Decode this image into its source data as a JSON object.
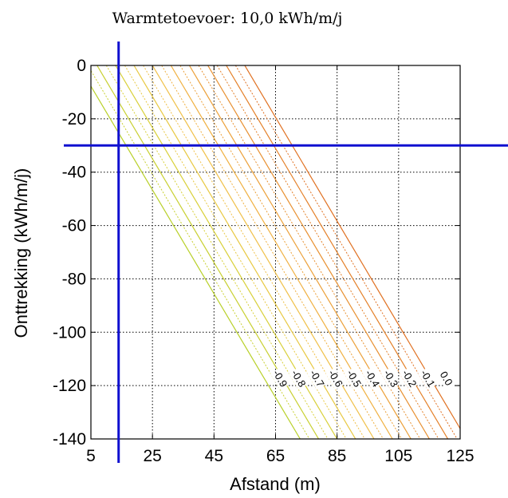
{
  "chart_data": {
    "type": "contour",
    "title": "Warmtetoevoer: 10,0 kWh/m/j",
    "xlabel": "Afstand (m)",
    "ylabel": "Onttrekking (kWh/m/j)",
    "xlim": [
      5,
      125
    ],
    "ylim": [
      -140,
      0
    ],
    "x_ticks": [
      "5",
      "25",
      "45",
      "65",
      "85",
      "105",
      "125"
    ],
    "y_ticks": [
      "0",
      "-20",
      "-40",
      "-60",
      "-80",
      "-100",
      "-120",
      "-140"
    ],
    "grid": true,
    "contour_levels": [
      {
        "label": "0.0",
        "value": 0.0,
        "color": "#e07020",
        "x_at_top": 55,
        "x_at_bottom": 127
      },
      {
        "label": "-0.1",
        "value": -0.1,
        "color": "#e48028",
        "x_at_top": 49,
        "x_at_bottom": 121
      },
      {
        "label": "-0.2",
        "value": -0.2,
        "color": "#e89030",
        "x_at_top": 43,
        "x_at_bottom": 115
      },
      {
        "label": "-0.3",
        "value": -0.3,
        "color": "#eca038",
        "x_at_top": 37,
        "x_at_bottom": 109
      },
      {
        "label": "-0.4",
        "value": -0.4,
        "color": "#f0b040",
        "x_at_top": 31,
        "x_at_bottom": 103
      },
      {
        "label": "-0.5",
        "value": -0.5,
        "color": "#f0c048",
        "x_at_top": 25,
        "x_at_bottom": 97
      },
      {
        "label": "-0.6",
        "value": -0.6,
        "color": "#e8c840",
        "x_at_top": 19,
        "x_at_bottom": 91
      },
      {
        "label": "-0.7",
        "value": -0.7,
        "color": "#d8d038",
        "x_at_top": 13,
        "x_at_bottom": 85
      },
      {
        "label": "-0.8",
        "value": -0.8,
        "color": "#c8d030",
        "x_at_top": 7,
        "x_at_bottom": 79
      },
      {
        "label": "-0.9",
        "value": -0.9,
        "color": "#b8d028",
        "x_at_top": 1,
        "x_at_bottom": 73
      }
    ],
    "marker_lines": {
      "x": 14,
      "y": -30,
      "color": "#1010d0"
    }
  }
}
